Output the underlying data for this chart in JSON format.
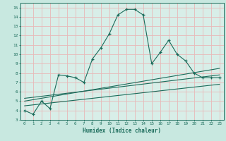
{
  "xlabel": "Humidex (Indice chaleur)",
  "ylabel": "",
  "bg_color": "#c8e8e0",
  "plot_bg_color": "#d8eee8",
  "grid_color": "#e8b8b8",
  "line_color": "#1a6b5a",
  "xlim": [
    -0.5,
    23.5
  ],
  "ylim": [
    3,
    15.5
  ],
  "xticks": [
    0,
    1,
    2,
    3,
    4,
    5,
    6,
    7,
    8,
    9,
    10,
    11,
    12,
    13,
    14,
    15,
    16,
    17,
    18,
    19,
    20,
    21,
    22,
    23
  ],
  "yticks": [
    3,
    4,
    5,
    6,
    7,
    8,
    9,
    10,
    11,
    12,
    13,
    14,
    15
  ],
  "main_x": [
    0,
    1,
    2,
    3,
    4,
    5,
    6,
    7,
    8,
    9,
    10,
    11,
    12,
    13,
    14,
    15,
    16,
    17,
    18,
    19,
    20,
    21,
    22,
    23
  ],
  "main_y": [
    4.0,
    3.6,
    5.0,
    4.2,
    7.8,
    7.7,
    7.5,
    7.0,
    9.5,
    10.7,
    12.2,
    14.2,
    14.8,
    14.8,
    14.2,
    9.0,
    10.2,
    11.5,
    10.0,
    9.3,
    8.0,
    7.5,
    7.5,
    7.5
  ],
  "line1_x": [
    0,
    23
  ],
  "line1_y": [
    5.0,
    8.5
  ],
  "line2_x": [
    0,
    23
  ],
  "line2_y": [
    5.3,
    7.8
  ],
  "line3_x": [
    0,
    23
  ],
  "line3_y": [
    4.5,
    6.8
  ]
}
